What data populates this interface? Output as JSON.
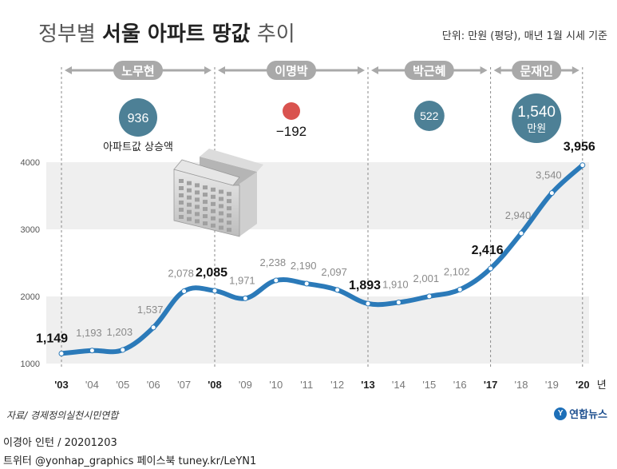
{
  "header": {
    "title_light": "정부별",
    "title_bold": "서울 아파트 땅값",
    "title_tail": "추이",
    "unit_note": "단위: 만원 (평당), 매년 1월 시세 기준"
  },
  "eras": [
    {
      "name": "노무현",
      "change": "936",
      "change_caption": "아파트값 상승액"
    },
    {
      "name": "이명박",
      "change": "−192"
    },
    {
      "name": "박근혜",
      "change": "522"
    },
    {
      "name": "문재인",
      "change": "1,540",
      "change_unit": "만원"
    }
  ],
  "source": "자료/ 경제정의실천시민연합",
  "logo_text": "연합뉴스",
  "byline": "이경아 인턴 / 20201203",
  "social": "트위터 @yonhap_graphics  페이스북 tuney.kr/LeYN1",
  "colors": {
    "line": "#2b7ab9",
    "era_bubble": "#4d8096",
    "negative_bubble": "#d9534f",
    "band": "#efefef",
    "era_bar": "#a9a9a9"
  },
  "chart_data": {
    "type": "line",
    "x": [
      "'03",
      "'04",
      "'05",
      "'06",
      "'07",
      "'08",
      "'09",
      "'10",
      "'11",
      "'12",
      "'13",
      "'14",
      "'15",
      "'16",
      "'17",
      "'18",
      "'19",
      "'20"
    ],
    "x_suffix": "년",
    "values": [
      1149,
      1193,
      1203,
      1537,
      2078,
      2085,
      1971,
      2238,
      2190,
      2097,
      1893,
      1910,
      2001,
      2102,
      2416,
      2940,
      3540,
      3956
    ],
    "labels": [
      "1,149",
      "1,193",
      "1,203",
      "1,537",
      "2,078",
      "2,085",
      "1,971",
      "2,238",
      "2,190",
      "2,097",
      "1,893",
      "1,910",
      "2,001",
      "2,102",
      "2,416",
      "2,940",
      "3,540",
      "3,956"
    ],
    "highlight_indices": [
      0,
      5,
      10,
      14,
      17
    ],
    "yticks": [
      "1000",
      "2000",
      "3000",
      "4000"
    ],
    "ylim": [
      1000,
      4000
    ],
    "era_boundaries": [
      "'03",
      "'08",
      "'13",
      "'17",
      "'20"
    ]
  }
}
